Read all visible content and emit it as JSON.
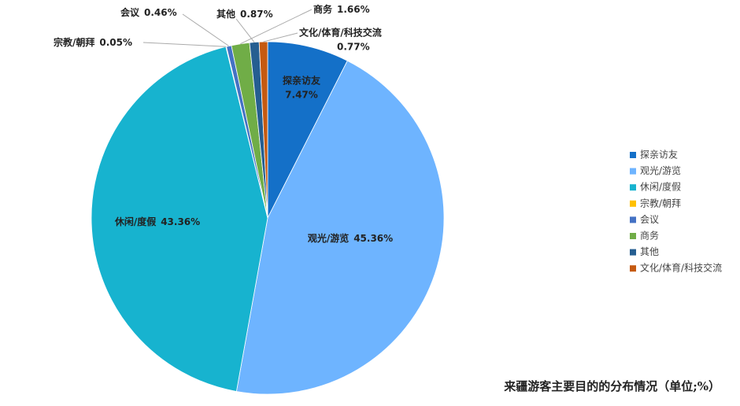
{
  "chart_data": {
    "type": "pie",
    "title": "来疆游客主要目的的分布情况（单位;%）",
    "categories": [
      "探亲访友",
      "观光/游览",
      "休闲/度假",
      "宗教/朝拜",
      "会议",
      "商务",
      "其他",
      "文化/体育/科技交流"
    ],
    "values": [
      7.47,
      45.36,
      43.36,
      0.05,
      0.46,
      1.66,
      0.87,
      0.77
    ],
    "value_labels": [
      "7.47%",
      "45.36%",
      "43.36%",
      "0.05%",
      "0.46%",
      "1.66%",
      "0.87%",
      "0.77%"
    ],
    "colors": [
      "#1470c8",
      "#6eb4ff",
      "#17b3cf",
      "#ffc000",
      "#4472c4",
      "#70ad47",
      "#255e91",
      "#c55a11"
    ],
    "legend": "right"
  }
}
